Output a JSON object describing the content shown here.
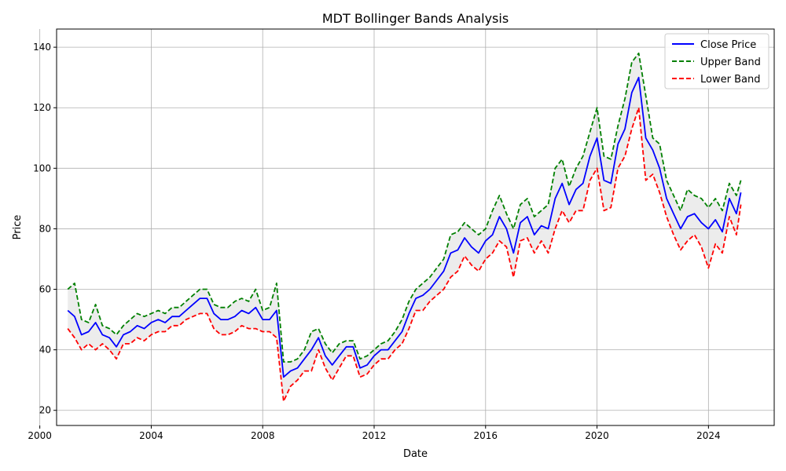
{
  "chart_data": {
    "type": "line",
    "title": "MDT Bollinger Bands Analysis",
    "xlabel": "Date",
    "ylabel": "Price",
    "xlim": [
      "2000-08-08",
      "2026-05-12"
    ],
    "ylim": [
      15,
      146
    ],
    "x_ticks": [
      "2000",
      "2004",
      "2008",
      "2012",
      "2016",
      "2020",
      "2024"
    ],
    "y_ticks": [
      20,
      40,
      60,
      80,
      100,
      120,
      140
    ],
    "grid": true,
    "legend_position": "top-right",
    "band_fill": true,
    "x": [
      "2001-01",
      "2001-04",
      "2001-07",
      "2001-10",
      "2002-01",
      "2002-04",
      "2002-07",
      "2002-10",
      "2003-01",
      "2003-04",
      "2003-07",
      "2003-10",
      "2004-01",
      "2004-04",
      "2004-07",
      "2004-10",
      "2005-01",
      "2005-04",
      "2005-07",
      "2005-10",
      "2006-01",
      "2006-04",
      "2006-07",
      "2006-10",
      "2007-01",
      "2007-04",
      "2007-07",
      "2007-10",
      "2008-01",
      "2008-04",
      "2008-07",
      "2008-10",
      "2009-01",
      "2009-04",
      "2009-07",
      "2009-10",
      "2010-01",
      "2010-04",
      "2010-07",
      "2010-10",
      "2011-01",
      "2011-04",
      "2011-07",
      "2011-10",
      "2012-01",
      "2012-04",
      "2012-07",
      "2012-10",
      "2013-01",
      "2013-04",
      "2013-07",
      "2013-10",
      "2014-01",
      "2014-04",
      "2014-07",
      "2014-10",
      "2015-01",
      "2015-04",
      "2015-07",
      "2015-10",
      "2016-01",
      "2016-04",
      "2016-07",
      "2016-10",
      "2017-01",
      "2017-04",
      "2017-07",
      "2017-10",
      "2018-01",
      "2018-04",
      "2018-07",
      "2018-10",
      "2019-01",
      "2019-04",
      "2019-07",
      "2019-10",
      "2020-01",
      "2020-04",
      "2020-07",
      "2020-10",
      "2021-01",
      "2021-04",
      "2021-07",
      "2021-10",
      "2022-01",
      "2022-04",
      "2022-07",
      "2022-10",
      "2023-01",
      "2023-04",
      "2023-07",
      "2023-10",
      "2024-01",
      "2024-04",
      "2024-07",
      "2024-10",
      "2025-01",
      "2025-03"
    ],
    "series": [
      {
        "name": "Close Price",
        "color": "#0000ff",
        "style": "solid",
        "values": [
          53,
          51,
          45,
          46,
          49,
          45,
          44,
          41,
          45,
          46,
          48,
          47,
          49,
          50,
          49,
          51,
          51,
          53,
          55,
          57,
          57,
          52,
          50,
          50,
          51,
          53,
          52,
          54,
          50,
          50,
          53,
          31,
          33,
          34,
          37,
          40,
          44,
          38,
          35,
          38,
          41,
          41,
          34,
          35,
          38,
          40,
          40,
          43,
          46,
          52,
          57,
          58,
          60,
          63,
          66,
          72,
          73,
          77,
          74,
          72,
          76,
          78,
          84,
          80,
          72,
          82,
          84,
          78,
          81,
          80,
          90,
          95,
          88,
          93,
          95,
          104,
          110,
          96,
          95,
          108,
          113,
          125,
          130,
          110,
          106,
          100,
          90,
          85,
          80,
          84,
          85,
          82,
          80,
          83,
          79,
          90,
          85,
          92
        ]
      },
      {
        "name": "Upper Band",
        "color": "#008000",
        "style": "dashed",
        "values": [
          60,
          62,
          50,
          49,
          55,
          48,
          47,
          45,
          48,
          50,
          52,
          51,
          52,
          53,
          52,
          54,
          54,
          56,
          58,
          60,
          60,
          55,
          54,
          54,
          56,
          57,
          56,
          60,
          53,
          54,
          62,
          36,
          36,
          37,
          40,
          46,
          47,
          42,
          39,
          42,
          43,
          43,
          37,
          38,
          40,
          42,
          43,
          46,
          50,
          56,
          60,
          62,
          64,
          67,
          70,
          78,
          79,
          82,
          80,
          78,
          80,
          86,
          91,
          85,
          80,
          88,
          90,
          84,
          86,
          88,
          100,
          103,
          94,
          100,
          104,
          112,
          120,
          104,
          103,
          114,
          123,
          135,
          138,
          124,
          110,
          108,
          96,
          91,
          86,
          93,
          91,
          90,
          87,
          90,
          86,
          95,
          91,
          96
        ]
      },
      {
        "name": "Lower Band",
        "color": "#ff0000",
        "style": "dashed",
        "values": [
          47,
          44,
          40,
          42,
          40,
          42,
          40,
          37,
          42,
          42,
          44,
          43,
          45,
          46,
          46,
          48,
          48,
          50,
          51,
          52,
          52,
          47,
          45,
          45,
          46,
          48,
          47,
          47,
          46,
          46,
          44,
          23,
          28,
          30,
          33,
          33,
          40,
          34,
          30,
          34,
          38,
          38,
          31,
          32,
          35,
          37,
          37,
          40,
          42,
          47,
          53,
          53,
          56,
          58,
          60,
          64,
          66,
          71,
          68,
          66,
          70,
          72,
          76,
          74,
          64,
          76,
          77,
          72,
          76,
          72,
          80,
          86,
          82,
          86,
          86,
          96,
          100,
          86,
          87,
          100,
          104,
          113,
          120,
          96,
          98,
          92,
          84,
          78,
          73,
          76,
          78,
          74,
          67,
          75,
          72,
          84,
          78,
          88
        ]
      }
    ]
  }
}
